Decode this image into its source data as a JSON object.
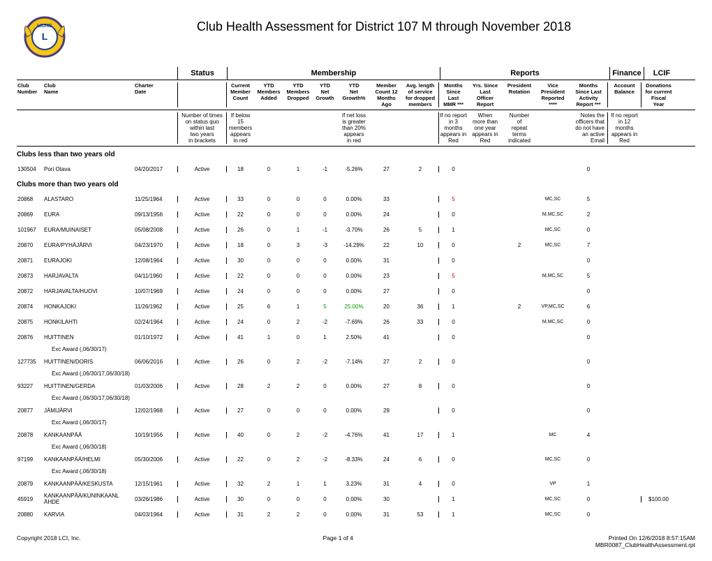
{
  "title": "Club Health Assessment for District 107 M through November 2018",
  "group_headers": {
    "status": "Status",
    "membership": "Membership",
    "reports": "Reports",
    "finance": "Finance",
    "lcif": "LCIF"
  },
  "col_headers": {
    "club_number": "Club\nNumber",
    "club_name": "Club\nName",
    "charter_date": "Charter\nDate",
    "status_blank": "",
    "current": "Current\nMember\nCount",
    "added": "YTD\nMembers\nAdded",
    "dropped": "YTD\nMembers\nDropped",
    "net_growth": "YTD\nNet\nGrowth",
    "net_growth_pct": "YTD\nNet\nGrowth%",
    "count12": "Member\nCount 12\nMonths\nAgo",
    "avg_len": "Avg. length\nof service\nfor dropped\nmembers",
    "mmr": "Months\nSince\nLast\nMMR ***",
    "yrs_since": "Yrs. Since\nLast\nOfficer\nReport",
    "pres_rot": "President\nRotation",
    "vp": "Vice\nPresident\nReported\n****",
    "activity": "Months\nSince Last\nActivity\nReport ***",
    "balance": "Account\nBalance",
    "donations": "Donations\nfor current\nFiscal\nYear"
  },
  "notes": {
    "status": "Number of times\non status quo\nwithin last\ntwo years\nin brackets",
    "current": "If below\n15\nmembers\nappears\nin red",
    "netloss": "If net loss\nis greater\nthan 20%\nappears\nin red",
    "mmr": "If no report\nin 3\nmonths\nappears in\nRed",
    "yrs": "When\nmore than\none year\nappears in\nRed",
    "rot": "Number\nof\nrepeat\nterms\nindicated",
    "vp": "Notes the\nofficers that\ndo not have\nan active\nEmail",
    "bal": "If no report\nin 12\nmonths\nappears in\nRed"
  },
  "section_less": "Clubs less than two years old",
  "section_more": "Clubs more than two years old",
  "rows_less": [
    {
      "num": "130504",
      "name": "Pori Otava",
      "date": "04/20/2017",
      "status": "Active",
      "cur": "18",
      "add": "0",
      "drop": "1",
      "netg": "-1",
      "netp": "-5.26%",
      "m12": "27",
      "avg": "2",
      "mmr": "0",
      "yrs": "",
      "prot": "",
      "vp": "",
      "act": "0",
      "bal": "",
      "don": ""
    }
  ],
  "rows_more": [
    {
      "num": "20868",
      "name": "ALASTARO",
      "date": "11/25/1964",
      "status": "Active",
      "cur": "33",
      "add": "0",
      "drop": "0",
      "netg": "0",
      "netp": "0.00%",
      "m12": "33",
      "avg": "",
      "mmr": "5",
      "mmr_red": true,
      "yrs": "",
      "prot": "",
      "vp": "MC,SC",
      "act": "5",
      "bal": "",
      "don": ""
    },
    {
      "num": "20869",
      "name": "EURA",
      "date": "09/13/1956",
      "status": "Active",
      "cur": "22",
      "add": "0",
      "drop": "0",
      "netg": "0",
      "netp": "0.00%",
      "m12": "24",
      "avg": "",
      "mmr": "0",
      "yrs": "",
      "prot": "",
      "vp": "M,MC,SC",
      "act": "2",
      "bal": "",
      "don": ""
    },
    {
      "num": "101967",
      "name": "EURA/MUINAISET",
      "date": "05/08/2008",
      "status": "Active",
      "cur": "26",
      "add": "0",
      "drop": "1",
      "netg": "-1",
      "netp": "-3.70%",
      "m12": "26",
      "avg": "5",
      "mmr": "1",
      "yrs": "",
      "prot": "",
      "vp": "MC,SC",
      "act": "0",
      "bal": "",
      "don": ""
    },
    {
      "num": "20870",
      "name": "EURA/PYHÄJÄRVI",
      "date": "04/23/1970",
      "status": "Active",
      "cur": "18",
      "add": "0",
      "drop": "3",
      "netg": "-3",
      "netp": "-14.29%",
      "m12": "22",
      "avg": "10",
      "mmr": "0",
      "yrs": "",
      "prot": "2",
      "vp": "MC,SC",
      "act": "7",
      "bal": "",
      "don": ""
    },
    {
      "num": "20871",
      "name": "EURAJOKI",
      "date": "12/08/1964",
      "status": "Active",
      "cur": "30",
      "add": "0",
      "drop": "0",
      "netg": "0",
      "netp": "0.00%",
      "m12": "31",
      "avg": "",
      "mmr": "0",
      "yrs": "",
      "prot": "",
      "vp": "",
      "act": "0",
      "bal": "",
      "don": ""
    },
    {
      "num": "20873",
      "name": "HARJAVALTA",
      "date": "04/11/1960",
      "status": "Active",
      "cur": "22",
      "add": "0",
      "drop": "0",
      "netg": "0",
      "netp": "0.00%",
      "m12": "23",
      "avg": "",
      "mmr": "5",
      "mmr_red": true,
      "yrs": "",
      "prot": "",
      "vp": "M,MC,SC",
      "act": "5",
      "bal": "",
      "don": ""
    },
    {
      "num": "20872",
      "name": "HARJAVALTA/HUOVI",
      "date": "10/07/1969",
      "status": "Active",
      "cur": "24",
      "add": "0",
      "drop": "0",
      "netg": "0",
      "netp": "0.00%",
      "m12": "27",
      "avg": "",
      "mmr": "0",
      "yrs": "",
      "prot": "",
      "vp": "",
      "act": "0",
      "bal": "",
      "don": ""
    },
    {
      "num": "20874",
      "name": "HONKAJOKI",
      "date": "11/26/1962",
      "status": "Active",
      "cur": "25",
      "add": "6",
      "drop": "1",
      "netg": "5",
      "netg_green": true,
      "netp": "25.00%",
      "netp_green": true,
      "m12": "20",
      "avg": "36",
      "mmr": "1",
      "yrs": "",
      "prot": "2",
      "vp": "VP,MC,SC",
      "act": "6",
      "bal": "",
      "don": ""
    },
    {
      "num": "20875",
      "name": "HONKILAHTI",
      "date": "02/24/1964",
      "status": "Active",
      "cur": "24",
      "add": "0",
      "drop": "2",
      "netg": "-2",
      "netp": "-7.69%",
      "m12": "26",
      "avg": "33",
      "mmr": "0",
      "yrs": "",
      "prot": "",
      "vp": "M,MC,SC",
      "act": "0",
      "bal": "",
      "don": ""
    },
    {
      "num": "20876",
      "name": "HUITTINEN",
      "date": "01/10/1972",
      "status": "Active",
      "cur": "41",
      "add": "1",
      "drop": "0",
      "netg": "1",
      "netp": "2.50%",
      "m12": "41",
      "avg": "",
      "mmr": "0",
      "yrs": "",
      "prot": "",
      "vp": "",
      "act": "0",
      "bal": "",
      "don": "",
      "exc": "Exc Award (,06/30/17)"
    },
    {
      "num": "127735",
      "name": "HUITTINEN/DORIS",
      "date": "06/06/2016",
      "status": "Active",
      "cur": "26",
      "add": "0",
      "drop": "2",
      "netg": "-2",
      "netp": "-7.14%",
      "m12": "27",
      "avg": "2",
      "mmr": "0",
      "yrs": "",
      "prot": "",
      "vp": "",
      "act": "0",
      "bal": "",
      "don": "",
      "exc": "Exc Award (,06/30/17,06/30/18)"
    },
    {
      "num": "93227",
      "name": "HUITTINEN/GERDA",
      "date": "01/03/2006",
      "status": "Active",
      "cur": "28",
      "add": "2",
      "drop": "2",
      "netg": "0",
      "netp": "0.00%",
      "m12": "27",
      "avg": "8",
      "mmr": "0",
      "yrs": "",
      "prot": "",
      "vp": "",
      "act": "0",
      "bal": "",
      "don": "",
      "exc": "Exc Award (,06/30/17,06/30/18)"
    },
    {
      "num": "20877",
      "name": "JÄMIJÄRVI",
      "date": "12/02/1968",
      "status": "Active",
      "cur": "27",
      "add": "0",
      "drop": "0",
      "netg": "0",
      "netp": "0.00%",
      "m12": "29",
      "avg": "",
      "mmr": "0",
      "yrs": "",
      "prot": "",
      "vp": "",
      "act": "0",
      "bal": "",
      "don": "",
      "exc": "Exc Award (,06/30/17)"
    },
    {
      "num": "20878",
      "name": "KANKAANPÄÄ",
      "date": "10/19/1956",
      "status": "Active",
      "cur": "40",
      "add": "0",
      "drop": "2",
      "netg": "-2",
      "netp": "-4.76%",
      "m12": "41",
      "avg": "17",
      "mmr": "1",
      "yrs": "",
      "prot": "",
      "vp": "MC",
      "act": "4",
      "bal": "",
      "don": "",
      "exc": "Exc Award (,06/30/18)"
    },
    {
      "num": "97199",
      "name": "KANKAANPÄÄ/HELMI",
      "date": "05/30/2006",
      "status": "Active",
      "cur": "22",
      "add": "0",
      "drop": "2",
      "netg": "-2",
      "netp": "-8.33%",
      "m12": "24",
      "avg": "6",
      "mmr": "0",
      "yrs": "",
      "prot": "",
      "vp": "MC,SC",
      "act": "0",
      "bal": "",
      "don": "",
      "exc": "Exc Award (,06/30/18)"
    },
    {
      "num": "20879",
      "name": "KANKAANPÄÄ/KESKUSTA",
      "date": "12/15/1961",
      "status": "Active",
      "cur": "32",
      "add": "2",
      "drop": "1",
      "netg": "1",
      "netp": "3.23%",
      "m12": "31",
      "avg": "4",
      "mmr": "0",
      "yrs": "",
      "prot": "",
      "vp": "VP",
      "act": "1",
      "bal": "",
      "don": ""
    },
    {
      "num": "45919",
      "name": "KANKAANPÄÄ/KUNINKAANL\nÄHDE",
      "date": "03/26/1986",
      "status": "Active",
      "cur": "30",
      "add": "0",
      "drop": "0",
      "netg": "0",
      "netp": "0.00%",
      "m12": "30",
      "avg": "",
      "mmr": "1",
      "yrs": "",
      "prot": "",
      "vp": "MC,SC",
      "act": "0",
      "bal": "",
      "don": "$100.00"
    },
    {
      "num": "20880",
      "name": "KARVIA",
      "date": "04/03/1964",
      "status": "Active",
      "cur": "31",
      "add": "2",
      "drop": "2",
      "netg": "0",
      "netp": "0.00%",
      "m12": "31",
      "avg": "53",
      "mmr": "1",
      "yrs": "",
      "prot": "",
      "vp": "MC,SC",
      "act": "0",
      "bal": "",
      "don": ""
    }
  ],
  "footer": {
    "left": "Copyright 2018 LCI, Inc.",
    "center": "Page 1 of 4",
    "right1": "Printed On 12/6/2018  8:57:15AM",
    "right2": "MBR0087_ClubHealthAssessment.rpt"
  },
  "logo_colors": {
    "gold": "#f5c518",
    "blue": "#1a3a8a",
    "purple": "#4a3a7a"
  }
}
